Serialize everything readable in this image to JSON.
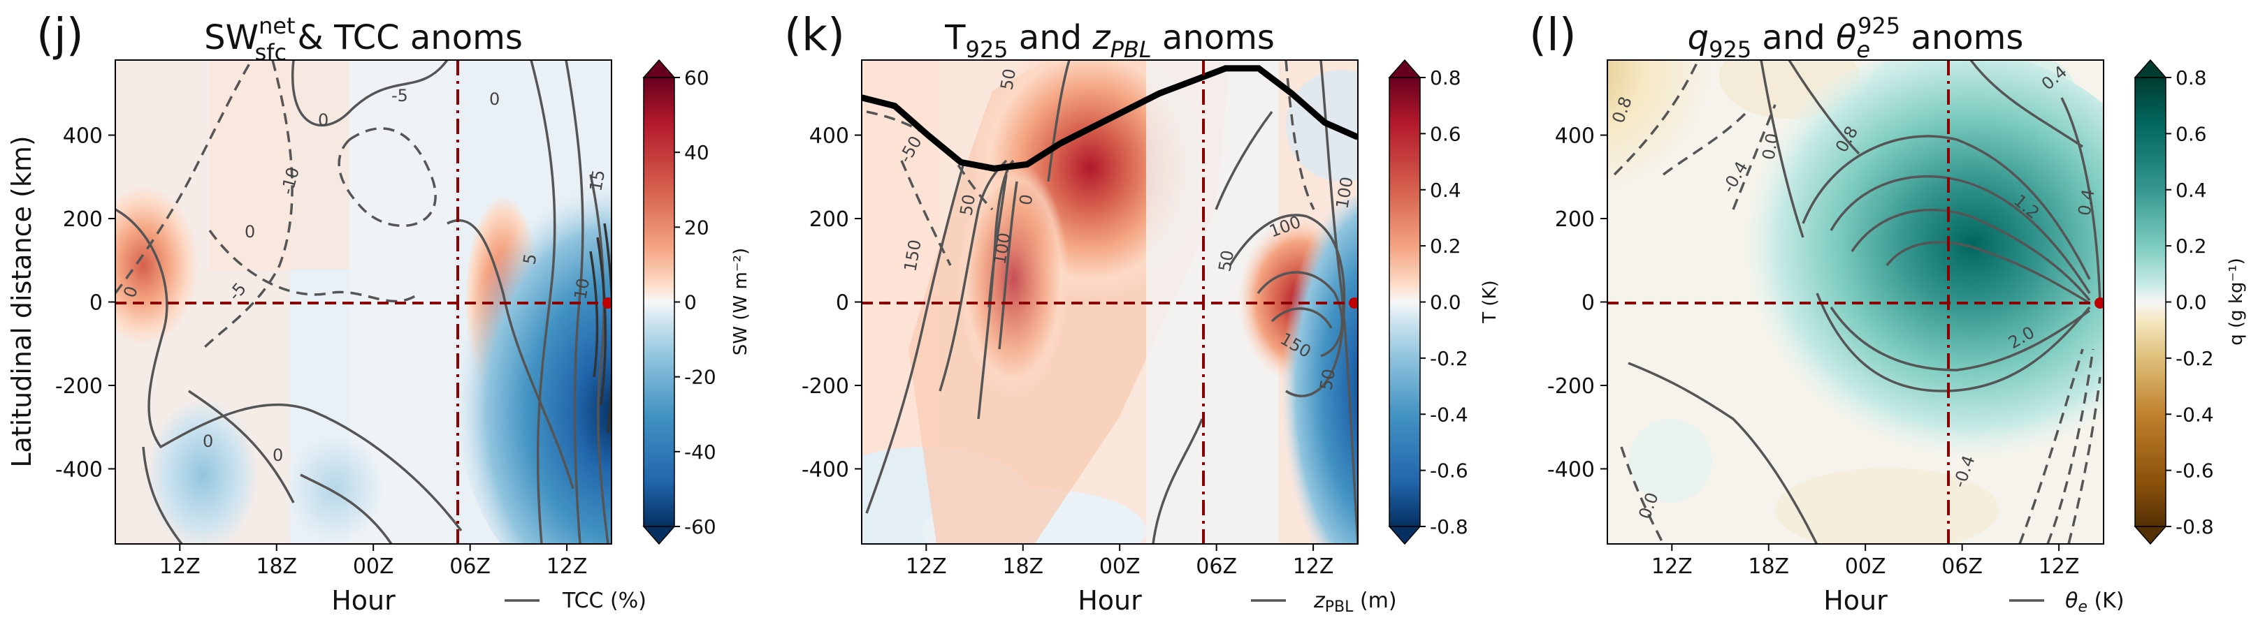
{
  "figure": {
    "ylabel": "Latitudinal distance (km)"
  },
  "chart_data": [
    {
      "type": "heatmap",
      "panel_letter": "(j)",
      "title": "SW_sfc^net & TCC anoms",
      "title_parts": {
        "main": "SW",
        "sup": "net",
        "sub": "sfc",
        "rest": " & TCC anoms"
      },
      "xlabel": "Hour",
      "ylabel": "Latitudinal distance (km)",
      "x_ticks": [
        "12Z",
        "18Z",
        "00Z",
        "06Z",
        "12Z"
      ],
      "y_ticks": [
        400,
        200,
        0,
        -200,
        -400
      ],
      "ylim": [
        -580,
        580
      ],
      "colorbar": {
        "label": "SW (W m⁻²)",
        "ticks": [
          60,
          40,
          20,
          0,
          -20,
          -40,
          -60
        ],
        "range": [
          -60,
          60
        ],
        "cmap": "RdBu_r"
      },
      "contour_legend": "TCC (%)",
      "contour_labels": [
        "0",
        "-5",
        "-10",
        "0",
        "-5",
        "0",
        "5",
        "15",
        "10",
        "0",
        "0",
        "0"
      ],
      "reference_lines": {
        "horizontal_y": 0,
        "vertical_x": "07Z"
      },
      "series_summary": [
        {
          "name": "positive SW anomaly (west)",
          "center_hour": "12Z",
          "center_y": 100,
          "peak": 30
        },
        {
          "name": "positive SW anomaly (east)",
          "center_hour": "10Z",
          "center_y": 0,
          "peak": 35
        },
        {
          "name": "negative SW anomaly",
          "center_hour": "15Z",
          "center_y": -150,
          "peak": -60
        }
      ]
    },
    {
      "type": "heatmap",
      "panel_letter": "(k)",
      "title": "T925 and zPBL anoms",
      "title_parts": {
        "main": "T",
        "sub": "925",
        "rest": " and ",
        "italic": "z",
        "italic_sub": "PBL",
        "tail": " anoms"
      },
      "xlabel": "Hour",
      "x_ticks": [
        "12Z",
        "18Z",
        "00Z",
        "06Z",
        "12Z"
      ],
      "y_ticks": [
        400,
        200,
        0,
        -200,
        -400
      ],
      "ylim": [
        -580,
        580
      ],
      "colorbar": {
        "label": "T (K)",
        "ticks": [
          "0.8",
          "0.6",
          "0.4",
          "0.2",
          "0.0",
          "-0.2",
          "-0.4",
          "-0.6",
          "-0.8"
        ],
        "range": [
          -0.8,
          0.8
        ],
        "cmap": "RdBu_r"
      },
      "contour_legend": "zPBL (m)",
      "contour_legend_parts": {
        "italic": "z",
        "sub": "PBL",
        "rest": " (m)"
      },
      "contour_labels": [
        "50",
        "-50",
        "50",
        "0",
        "100",
        "150",
        "100",
        "50",
        "150",
        "100",
        "50"
      ],
      "reference_lines": {
        "horizontal_y": 0,
        "vertical_x": "07Z"
      },
      "thick_line": [
        490,
        470,
        400,
        335,
        320,
        330,
        380,
        420,
        460,
        500,
        530,
        560,
        560,
        500,
        430,
        395
      ]
    },
    {
      "type": "heatmap",
      "panel_letter": "(l)",
      "title": "q925 and θe925 anoms",
      "title_parts": {
        "main": "q",
        "sub": "925",
        "rest": " and ",
        "theta": "θ",
        "theta_sub": "e",
        "theta_sup": "925",
        "tail": " anoms"
      },
      "xlabel": "Hour",
      "x_ticks": [
        "12Z",
        "18Z",
        "00Z",
        "06Z",
        "12Z"
      ],
      "y_ticks": [
        400,
        200,
        0,
        -200,
        -400
      ],
      "ylim": [
        -580,
        580
      ],
      "colorbar": {
        "label": "q (g kg⁻¹)",
        "ticks": [
          "0.8",
          "0.6",
          "0.4",
          "0.2",
          "0.0",
          "-0.2",
          "-0.4",
          "-0.6",
          "-0.8"
        ],
        "range": [
          -0.8,
          0.8
        ],
        "cmap": "BrBG"
      },
      "contour_legend": "θe (K)",
      "contour_legend_parts": {
        "theta": "θ",
        "sub": "e",
        "rest": " (K)"
      },
      "contour_labels": [
        "0.8",
        "-0.4",
        "0.0",
        "0.4",
        "0.8",
        "1.2",
        "-0.4",
        "0.0",
        "2.0",
        "0.4"
      ],
      "reference_lines": {
        "horizontal_y": 0,
        "vertical_x": "07Z"
      }
    }
  ]
}
